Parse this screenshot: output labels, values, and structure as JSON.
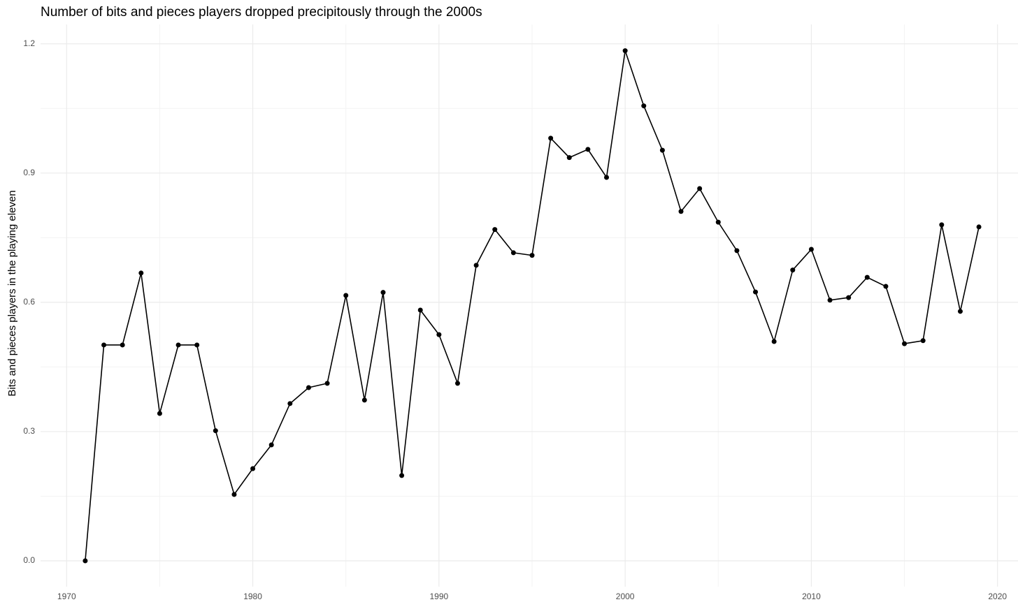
{
  "chart_data": {
    "type": "line",
    "title": "Number of bits and pieces players dropped precipitously through the 2000s",
    "y_label": "Bits and pieces players in the playing eleven",
    "x": [
      1971,
      1972,
      1973,
      1974,
      1975,
      1976,
      1977,
      1978,
      1979,
      1980,
      1981,
      1982,
      1983,
      1984,
      1985,
      1986,
      1987,
      1988,
      1989,
      1990,
      1991,
      1992,
      1993,
      1994,
      1995,
      1996,
      1997,
      1998,
      1999,
      2000,
      2001,
      2002,
      2003,
      2004,
      2005,
      2006,
      2007,
      2008,
      2009,
      2010,
      2011,
      2012,
      2013,
      2014,
      2015,
      2016,
      2017,
      2018,
      2019
    ],
    "series": [
      {
        "color": "#000000",
        "values": [
          0,
          0.501,
          0.501,
          0.668,
          0.342,
          0.501,
          0.501,
          0.302,
          0.154,
          0.214,
          0.269,
          0.365,
          0.402,
          0.412,
          0.616,
          0.373,
          0.623,
          0.198,
          0.582,
          0.525,
          0.412,
          0.686,
          0.769,
          0.715,
          0.709,
          0.981,
          0.936,
          0.955,
          0.89,
          1.184,
          1.056,
          0.953,
          0.811,
          0.864,
          0.786,
          0.72,
          0.624,
          0.509,
          0.675,
          0.723,
          0.605,
          0.611,
          0.658,
          0.637,
          0.504,
          0.511,
          0.78,
          0.579,
          0.775
        ]
      }
    ],
    "xlim": [
      1968.6,
      2021.1
    ],
    "ylim": [
      -0.06,
      1.245
    ],
    "xticks": [
      1970,
      1980,
      1990,
      2000,
      2010,
      2020
    ],
    "yticks": [
      {
        "value": 0,
        "label": "0.0"
      },
      0.3,
      0.6,
      0.9,
      1.2
    ],
    "grid": true,
    "minor_grid": true,
    "markers": true
  }
}
